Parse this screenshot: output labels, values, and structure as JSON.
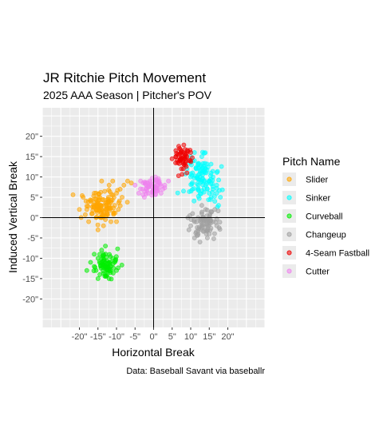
{
  "chart_data": {
    "type": "scatter",
    "title": "JR Ritchie Pitch Movement",
    "subtitle": "2025 AAA Season | Pitcher's POV",
    "xlabel": "Horizontal Break",
    "ylabel": "Induced Vertical Break",
    "caption": "Data: Baseball Savant via baseballr",
    "xlim": [
      -30,
      30
    ],
    "ylim": [
      -27,
      27
    ],
    "x_ticks": [
      {
        "value": -20,
        "label": "-20\""
      },
      {
        "value": -15,
        "label": "-15\""
      },
      {
        "value": -10,
        "label": "-10\""
      },
      {
        "value": -5,
        "label": "-5\""
      },
      {
        "value": 0,
        "label": "0\""
      },
      {
        "value": 5,
        "label": "5\""
      },
      {
        "value": 10,
        "label": "10\""
      },
      {
        "value": 15,
        "label": "15\""
      },
      {
        "value": 20,
        "label": "20\""
      }
    ],
    "y_ticks": [
      {
        "value": 20,
        "label": "20\""
      },
      {
        "value": 15,
        "label": "15\""
      },
      {
        "value": 10,
        "label": "10\""
      },
      {
        "value": 5,
        "label": "5\""
      },
      {
        "value": 0,
        "label": "0\""
      },
      {
        "value": -5,
        "label": "-5\""
      },
      {
        "value": -10,
        "label": "-10\""
      },
      {
        "value": -15,
        "label": "-15\""
      },
      {
        "value": -20,
        "label": "-20\""
      }
    ],
    "grid": true,
    "legend": {
      "title": "Pitch Name",
      "position": "right"
    },
    "series": [
      {
        "name": "Slider",
        "color": "#FFA500",
        "center": [
          -13.5,
          3
        ],
        "spread": [
          3.2,
          2.6
        ],
        "points": [
          [
            -18,
            2
          ],
          [
            -17,
            4
          ],
          [
            -16.5,
            1
          ],
          [
            -15,
            3
          ],
          [
            -14.5,
            5
          ],
          [
            -14,
            2
          ],
          [
            -13,
            3.5
          ],
          [
            -12.5,
            1
          ],
          [
            -12,
            4
          ],
          [
            -11,
            5.5
          ],
          [
            -10.5,
            3
          ],
          [
            -10,
            6
          ],
          [
            -9,
            7
          ],
          [
            -8,
            8
          ],
          [
            -7,
            9
          ],
          [
            -6,
            8.5
          ],
          [
            -9.5,
            2
          ],
          [
            -11.5,
            -1
          ],
          [
            -13,
            -0.5
          ],
          [
            -15.5,
            0
          ],
          [
            -16,
            6
          ],
          [
            -12,
            8
          ],
          [
            -14,
            9
          ],
          [
            -19,
            5
          ],
          [
            -20,
            2
          ],
          [
            -17.5,
            -1
          ],
          [
            -13.5,
            -2
          ],
          [
            -10,
            -1
          ],
          [
            -8.5,
            5
          ],
          [
            -11,
            9
          ],
          [
            -15,
            -3
          ],
          [
            -14,
            0
          ],
          [
            -12.8,
            2.2
          ],
          [
            -13.8,
            4.4
          ],
          [
            -16.2,
            3.1
          ],
          [
            -11.8,
            6.4
          ],
          [
            -10.8,
            0.8
          ],
          [
            -9.2,
            4.1
          ]
        ]
      },
      {
        "name": "Sinker",
        "color": "#00FFFF",
        "center": [
          13.5,
          10
        ],
        "spread": [
          2.8,
          3.5
        ],
        "points": [
          [
            10,
            15
          ],
          [
            11,
            14
          ],
          [
            12,
            13
          ],
          [
            10.5,
            11
          ],
          [
            11.5,
            12
          ],
          [
            12.5,
            10
          ],
          [
            13,
            11
          ],
          [
            13.5,
            9
          ],
          [
            14,
            8
          ],
          [
            14.5,
            7
          ],
          [
            15,
            6
          ],
          [
            15.5,
            5
          ],
          [
            16,
            7
          ],
          [
            16.5,
            4
          ],
          [
            17,
            6
          ],
          [
            17.5,
            3
          ],
          [
            15,
            9
          ],
          [
            14,
            12
          ],
          [
            12,
            8
          ],
          [
            11,
            16
          ],
          [
            13,
            15
          ],
          [
            10,
            10
          ],
          [
            9,
            12
          ],
          [
            16,
            10
          ],
          [
            17,
            8
          ],
          [
            18,
            5
          ],
          [
            15.8,
            6.2
          ],
          [
            16.4,
            5.2
          ],
          [
            14.8,
            4.4
          ],
          [
            17.2,
            2.6
          ],
          [
            12.8,
            12.8
          ],
          [
            11.8,
            9.6
          ],
          [
            9.8,
            13.4
          ],
          [
            13.6,
            7.2
          ]
        ]
      },
      {
        "name": "Curveball",
        "color": "#00EE00",
        "center": [
          -13,
          -11.5
        ],
        "spread": [
          2.4,
          2.2
        ],
        "points": [
          [
            -15,
            -10
          ],
          [
            -14,
            -11
          ],
          [
            -13,
            -12
          ],
          [
            -12,
            -11
          ],
          [
            -11,
            -10
          ],
          [
            -16,
            -12
          ],
          [
            -15.5,
            -13
          ],
          [
            -14.5,
            -14
          ],
          [
            -13.5,
            -9
          ],
          [
            -12.5,
            -13
          ],
          [
            -11.5,
            -12
          ],
          [
            -10.5,
            -11
          ],
          [
            -17,
            -11
          ],
          [
            -16,
            -9
          ],
          [
            -14,
            -8
          ],
          [
            -13,
            -14
          ],
          [
            -12,
            -15
          ],
          [
            -15,
            -15
          ],
          [
            -10,
            -13
          ],
          [
            -18,
            -13
          ],
          [
            -13,
            -7
          ],
          [
            -14.2,
            -12.4
          ],
          [
            -12.6,
            -10.6
          ],
          [
            -13.8,
            -11.8
          ]
        ]
      },
      {
        "name": "Changeup",
        "color": "#A0A0A0",
        "center": [
          13.5,
          -1.5
        ],
        "spread": [
          2.6,
          2.6
        ],
        "points": [
          [
            10,
            -2
          ],
          [
            11,
            -1
          ],
          [
            12,
            0
          ],
          [
            13,
            1
          ],
          [
            14,
            2
          ],
          [
            15,
            0
          ],
          [
            16,
            -1
          ],
          [
            14,
            -3
          ],
          [
            12,
            -4
          ],
          [
            11,
            -5
          ],
          [
            13,
            -2
          ],
          [
            15,
            -4
          ],
          [
            16.5,
            2
          ],
          [
            17,
            -2
          ],
          [
            10.5,
            1
          ],
          [
            12.5,
            -6
          ],
          [
            14.5,
            -5
          ],
          [
            9.5,
            -3
          ],
          [
            13,
            3
          ],
          [
            11.5,
            -3.5
          ],
          [
            15.5,
            1.5
          ],
          [
            12.8,
            -1.2
          ],
          [
            14.2,
            -0.6
          ],
          [
            13.4,
            -3.4
          ]
        ]
      },
      {
        "name": "4-Seam Fastball",
        "color": "#EE0000",
        "center": [
          8,
          14.5
        ],
        "spread": [
          1.8,
          2.0
        ],
        "points": [
          [
            6,
            15
          ],
          [
            7,
            14
          ],
          [
            8,
            16
          ],
          [
            9,
            15
          ],
          [
            8.5,
            13
          ],
          [
            7.5,
            12
          ],
          [
            6.5,
            13.5
          ],
          [
            9.5,
            14
          ],
          [
            10,
            16
          ],
          [
            7,
            17
          ],
          [
            8,
            12
          ],
          [
            9,
            11
          ],
          [
            6,
            16.5
          ],
          [
            7.8,
            14.8
          ],
          [
            8.6,
            15.4
          ],
          [
            7.2,
            15.8
          ]
        ]
      },
      {
        "name": "Cutter",
        "color": "#EE82EE",
        "center": [
          -0.5,
          7.5
        ],
        "spread": [
          2.3,
          1.6
        ],
        "points": [
          [
            -3,
            7
          ],
          [
            -2,
            8
          ],
          [
            -1,
            9
          ],
          [
            0,
            7
          ],
          [
            1,
            8
          ],
          [
            2,
            6
          ],
          [
            -4,
            6
          ],
          [
            -2.5,
            5
          ],
          [
            0.5,
            10
          ],
          [
            1.5,
            9
          ],
          [
            -1.5,
            6
          ],
          [
            3,
            8
          ],
          [
            -3.5,
            9
          ],
          [
            2.5,
            7
          ],
          [
            -0.5,
            5.5
          ],
          [
            4,
            9
          ],
          [
            -5,
            8
          ],
          [
            0.2,
            8.4
          ],
          [
            -1.2,
            7.6
          ]
        ]
      }
    ]
  }
}
